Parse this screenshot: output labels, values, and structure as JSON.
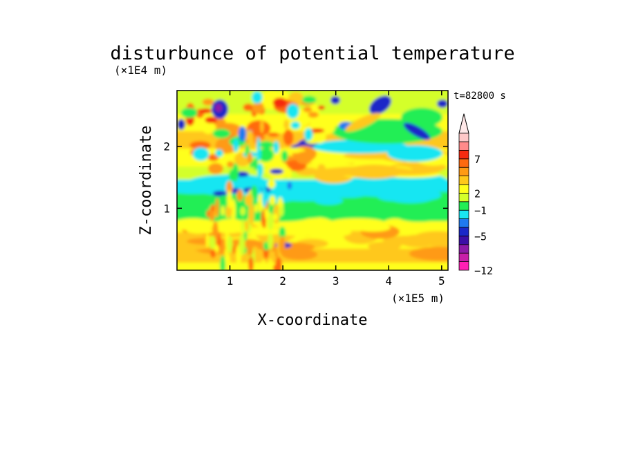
{
  "chart_data": {
    "type": "heatmap",
    "title": "disturbunce of potential temperature",
    "xlabel": "X-coordinate",
    "ylabel": "Z-coordinate",
    "x_scale_label": "(×1E5 m)",
    "y_scale_label": "(×1E4 m)",
    "time_label": "t=82800 s",
    "xlim": [
      0,
      5.12
    ],
    "ylim": [
      0,
      2.9
    ],
    "x_ticks": [
      "1",
      "2",
      "3",
      "4",
      "5"
    ],
    "x_tick_values": [
      1,
      2,
      3,
      4,
      5
    ],
    "y_ticks": [
      "1",
      "2"
    ],
    "y_tick_values": [
      1,
      2
    ],
    "colorbar": {
      "bins": [
        {
          "color": "#ff1fb4"
        },
        {
          "color": "#c81ea8"
        },
        {
          "color": "#8e1aa8"
        },
        {
          "color": "#3c0fa6"
        },
        {
          "color": "#1a28c8"
        },
        {
          "color": "#1f7af0"
        },
        {
          "color": "#19e6f2"
        },
        {
          "color": "#22ee55"
        },
        {
          "color": "#d4ff2a"
        },
        {
          "color": "#ffff1a"
        },
        {
          "color": "#ffc81a"
        },
        {
          "color": "#ff9a14"
        },
        {
          "color": "#ff6a10"
        },
        {
          "color": "#f52a10"
        },
        {
          "color": "#ff8a8a"
        },
        {
          "color": "#ffc8c8"
        }
      ],
      "extend_top_color": "#ffe8e8",
      "labels": [
        {
          "text": "7",
          "bin_edge": 13
        },
        {
          "text": "2",
          "bin_edge": 9
        },
        {
          "text": "−1",
          "bin_edge": 7
        },
        {
          "text": "−5",
          "bin_edge": 4
        },
        {
          "text": "−12",
          "bin_edge": 0
        }
      ]
    }
  }
}
